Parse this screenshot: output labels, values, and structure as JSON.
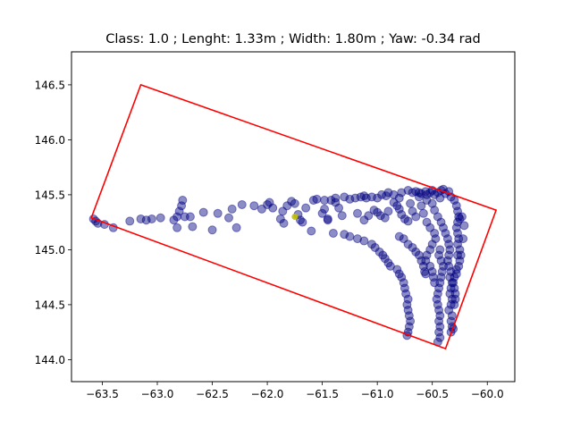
{
  "chart_data": {
    "type": "scatter",
    "title": "Class: 1.0 ; Lenght: 1.33m ; Width: 1.80m ; Yaw: -0.34 rad",
    "xlim": [
      -63.78,
      -59.75
    ],
    "ylim": [
      143.8,
      146.8
    ],
    "x_ticks": [
      -63.5,
      -63.0,
      -62.5,
      -62.0,
      -61.5,
      -61.0,
      -60.5,
      -60.0
    ],
    "x_tick_labels": [
      "−63.5",
      "−63.0",
      "−62.5",
      "−62.0",
      "−61.5",
      "−61.0",
      "−60.5",
      "−60.0"
    ],
    "y_ticks": [
      144.0,
      144.5,
      145.0,
      145.5,
      146.0,
      146.5
    ],
    "y_tick_labels": [
      "144.0",
      "144.5",
      "145.0",
      "145.5",
      "146.0",
      "146.5"
    ],
    "grid": false,
    "point_color": "#000080",
    "point_alpha": 0.45,
    "highlight_color": "#bfbf00",
    "box_color": "#ff0000",
    "bounding_box": [
      [
        -63.15,
        146.5
      ],
      [
        -59.92,
        145.36
      ],
      [
        -60.38,
        144.1
      ],
      [
        -63.6,
        145.29
      ]
    ],
    "highlight_point": [
      -61.75,
      145.3
    ],
    "points": [
      [
        -63.58,
        145.28
      ],
      [
        -63.56,
        145.26
      ],
      [
        -63.54,
        145.24
      ],
      [
        -63.48,
        145.23
      ],
      [
        -63.4,
        145.2
      ],
      [
        -63.25,
        145.26
      ],
      [
        -63.15,
        145.28
      ],
      [
        -63.1,
        145.27
      ],
      [
        -63.05,
        145.28
      ],
      [
        -62.97,
        145.29
      ],
      [
        -62.85,
        145.27
      ],
      [
        -62.82,
        145.3
      ],
      [
        -62.8,
        145.35
      ],
      [
        -62.78,
        145.4
      ],
      [
        -62.77,
        145.45
      ],
      [
        -62.75,
        145.3
      ],
      [
        -62.7,
        145.3
      ],
      [
        -62.82,
        145.2
      ],
      [
        -62.68,
        145.21
      ],
      [
        -62.58,
        145.34
      ],
      [
        -62.5,
        145.18
      ],
      [
        -62.45,
        145.33
      ],
      [
        -62.35,
        145.29
      ],
      [
        -62.32,
        145.37
      ],
      [
        -62.28,
        145.2
      ],
      [
        -62.23,
        145.41
      ],
      [
        -62.12,
        145.4
      ],
      [
        -62.05,
        145.37
      ],
      [
        -62.0,
        145.41
      ],
      [
        -61.98,
        145.43
      ],
      [
        -61.95,
        145.38
      ],
      [
        -61.88,
        145.28
      ],
      [
        -61.86,
        145.35
      ],
      [
        -61.85,
        145.24
      ],
      [
        -61.82,
        145.4
      ],
      [
        -61.78,
        145.44
      ],
      [
        -61.75,
        145.42
      ],
      [
        -61.72,
        145.32
      ],
      [
        -61.7,
        145.27
      ],
      [
        -61.68,
        145.25
      ],
      [
        -61.65,
        145.38
      ],
      [
        -61.58,
        145.45
      ],
      [
        -61.55,
        145.46
      ],
      [
        -61.5,
        145.33
      ],
      [
        -61.48,
        145.45
      ],
      [
        -61.45,
        145.28
      ],
      [
        -61.42,
        145.45
      ],
      [
        -61.38,
        145.47
      ],
      [
        -61.35,
        145.38
      ],
      [
        -61.3,
        145.48
      ],
      [
        -61.25,
        145.46
      ],
      [
        -61.2,
        145.47
      ],
      [
        -61.15,
        145.48
      ],
      [
        -61.12,
        145.49
      ],
      [
        -61.1,
        145.47
      ],
      [
        -61.05,
        145.48
      ],
      [
        -61.0,
        145.47
      ],
      [
        -60.96,
        145.5
      ],
      [
        -60.92,
        145.49
      ],
      [
        -60.9,
        145.52
      ],
      [
        -60.85,
        145.5
      ],
      [
        -60.8,
        145.47
      ],
      [
        -60.78,
        145.52
      ],
      [
        -60.72,
        145.54
      ],
      [
        -60.68,
        145.52
      ],
      [
        -60.65,
        145.53
      ],
      [
        -60.62,
        145.52
      ],
      [
        -60.6,
        145.51
      ],
      [
        -60.56,
        145.53
      ],
      [
        -60.55,
        145.5
      ],
      [
        -60.52,
        145.52
      ],
      [
        -60.5,
        145.54
      ],
      [
        -60.48,
        145.5
      ],
      [
        -60.45,
        145.52
      ],
      [
        -60.43,
        145.47
      ],
      [
        -60.42,
        145.54
      ],
      [
        -60.4,
        145.55
      ],
      [
        -60.38,
        145.51
      ],
      [
        -60.35,
        145.53
      ],
      [
        -60.33,
        145.48
      ],
      [
        -61.48,
        145.37
      ],
      [
        -61.45,
        145.27
      ],
      [
        -61.38,
        145.43
      ],
      [
        -61.32,
        145.31
      ],
      [
        -61.18,
        145.33
      ],
      [
        -61.12,
        145.27
      ],
      [
        -61.08,
        145.31
      ],
      [
        -61.03,
        145.36
      ],
      [
        -61.0,
        145.34
      ],
      [
        -60.97,
        145.31
      ],
      [
        -60.93,
        145.29
      ],
      [
        -60.9,
        145.35
      ],
      [
        -60.85,
        145.43
      ],
      [
        -60.82,
        145.4
      ],
      [
        -60.8,
        145.37
      ],
      [
        -60.78,
        145.32
      ],
      [
        -60.75,
        145.28
      ],
      [
        -60.72,
        145.26
      ],
      [
        -60.7,
        145.42
      ],
      [
        -60.68,
        145.35
      ],
      [
        -60.65,
        145.3
      ],
      [
        -60.62,
        145.48
      ],
      [
        -60.6,
        145.4
      ],
      [
        -60.58,
        145.33
      ],
      [
        -60.55,
        145.45
      ],
      [
        -60.5,
        145.42
      ],
      [
        -60.48,
        145.36
      ],
      [
        -60.45,
        145.3
      ],
      [
        -60.42,
        145.25
      ],
      [
        -60.4,
        145.2
      ],
      [
        -60.38,
        145.15
      ],
      [
        -60.36,
        145.1
      ],
      [
        -60.35,
        145.05
      ],
      [
        -60.34,
        145.0
      ],
      [
        -60.35,
        144.95
      ],
      [
        -60.36,
        144.9
      ],
      [
        -60.35,
        144.85
      ],
      [
        -60.33,
        144.8
      ],
      [
        -60.34,
        144.75
      ],
      [
        -60.32,
        144.7
      ],
      [
        -60.33,
        144.65
      ],
      [
        -60.34,
        144.6
      ],
      [
        -60.32,
        144.55
      ],
      [
        -60.33,
        144.5
      ],
      [
        -60.35,
        144.45
      ],
      [
        -60.32,
        144.4
      ],
      [
        -60.33,
        144.35
      ],
      [
        -60.32,
        144.3
      ],
      [
        -60.31,
        144.28
      ],
      [
        -60.33,
        144.25
      ],
      [
        -60.3,
        145.45
      ],
      [
        -60.28,
        145.4
      ],
      [
        -60.27,
        145.35
      ],
      [
        -60.26,
        145.3
      ],
      [
        -60.25,
        145.28
      ],
      [
        -60.27,
        145.25
      ],
      [
        -60.28,
        145.2
      ],
      [
        -60.27,
        145.15
      ],
      [
        -60.26,
        145.1
      ],
      [
        -60.27,
        145.05
      ],
      [
        -60.25,
        145.0
      ],
      [
        -60.27,
        144.95
      ],
      [
        -60.25,
        144.9
      ],
      [
        -60.26,
        144.85
      ],
      [
        -60.28,
        144.82
      ],
      [
        -60.28,
        144.78
      ],
      [
        -60.3,
        144.75
      ],
      [
        -60.31,
        144.7
      ],
      [
        -60.3,
        144.65
      ],
      [
        -60.29,
        144.6
      ],
      [
        -60.29,
        144.55
      ],
      [
        -60.3,
        144.5
      ],
      [
        -60.21,
        145.22
      ],
      [
        -60.23,
        145.3
      ],
      [
        -60.22,
        145.1
      ],
      [
        -60.24,
        144.95
      ],
      [
        -60.43,
        145.0
      ],
      [
        -60.44,
        144.95
      ],
      [
        -60.42,
        144.9
      ],
      [
        -60.4,
        144.85
      ],
      [
        -60.41,
        144.8
      ],
      [
        -60.42,
        144.75
      ],
      [
        -60.43,
        144.7
      ],
      [
        -60.44,
        144.65
      ],
      [
        -60.45,
        144.6
      ],
      [
        -60.46,
        144.55
      ],
      [
        -60.45,
        144.5
      ],
      [
        -60.44,
        144.45
      ],
      [
        -60.43,
        144.4
      ],
      [
        -60.44,
        144.35
      ],
      [
        -60.43,
        144.3
      ],
      [
        -60.44,
        144.25
      ],
      [
        -60.43,
        144.2
      ],
      [
        -60.45,
        144.16
      ],
      [
        -60.48,
        145.15
      ],
      [
        -60.47,
        145.1
      ],
      [
        -60.5,
        145.05
      ],
      [
        -60.52,
        145.0
      ],
      [
        -60.55,
        144.95
      ],
      [
        -60.56,
        144.9
      ],
      [
        -60.52,
        144.85
      ],
      [
        -60.5,
        144.8
      ],
      [
        -60.49,
        144.75
      ],
      [
        -60.48,
        144.7
      ],
      [
        -60.52,
        145.2
      ],
      [
        -60.55,
        145.25
      ],
      [
        -61.4,
        145.15
      ],
      [
        -61.3,
        145.14
      ],
      [
        -61.25,
        145.12
      ],
      [
        -61.18,
        145.1
      ],
      [
        -61.12,
        145.08
      ],
      [
        -61.05,
        145.05
      ],
      [
        -61.02,
        145.02
      ],
      [
        -60.98,
        144.98
      ],
      [
        -60.95,
        144.95
      ],
      [
        -60.93,
        144.92
      ],
      [
        -60.9,
        144.88
      ],
      [
        -60.88,
        144.85
      ],
      [
        -60.82,
        144.82
      ],
      [
        -60.8,
        144.78
      ],
      [
        -60.78,
        144.75
      ],
      [
        -60.76,
        144.7
      ],
      [
        -60.75,
        144.65
      ],
      [
        -60.74,
        144.6
      ],
      [
        -60.72,
        144.55
      ],
      [
        -60.73,
        144.5
      ],
      [
        -60.72,
        144.45
      ],
      [
        -60.71,
        144.4
      ],
      [
        -60.7,
        144.35
      ],
      [
        -60.71,
        144.3
      ],
      [
        -60.72,
        144.25
      ],
      [
        -60.73,
        144.22
      ],
      [
        -60.8,
        145.12
      ],
      [
        -60.76,
        145.1
      ],
      [
        -60.72,
        145.05
      ],
      [
        -60.68,
        145.02
      ],
      [
        -60.65,
        144.98
      ],
      [
        -60.62,
        144.95
      ],
      [
        -60.6,
        144.9
      ],
      [
        -60.58,
        144.85
      ],
      [
        -60.57,
        144.8
      ],
      [
        -60.56,
        144.78
      ],
      [
        -61.6,
        145.17
      ]
    ]
  }
}
